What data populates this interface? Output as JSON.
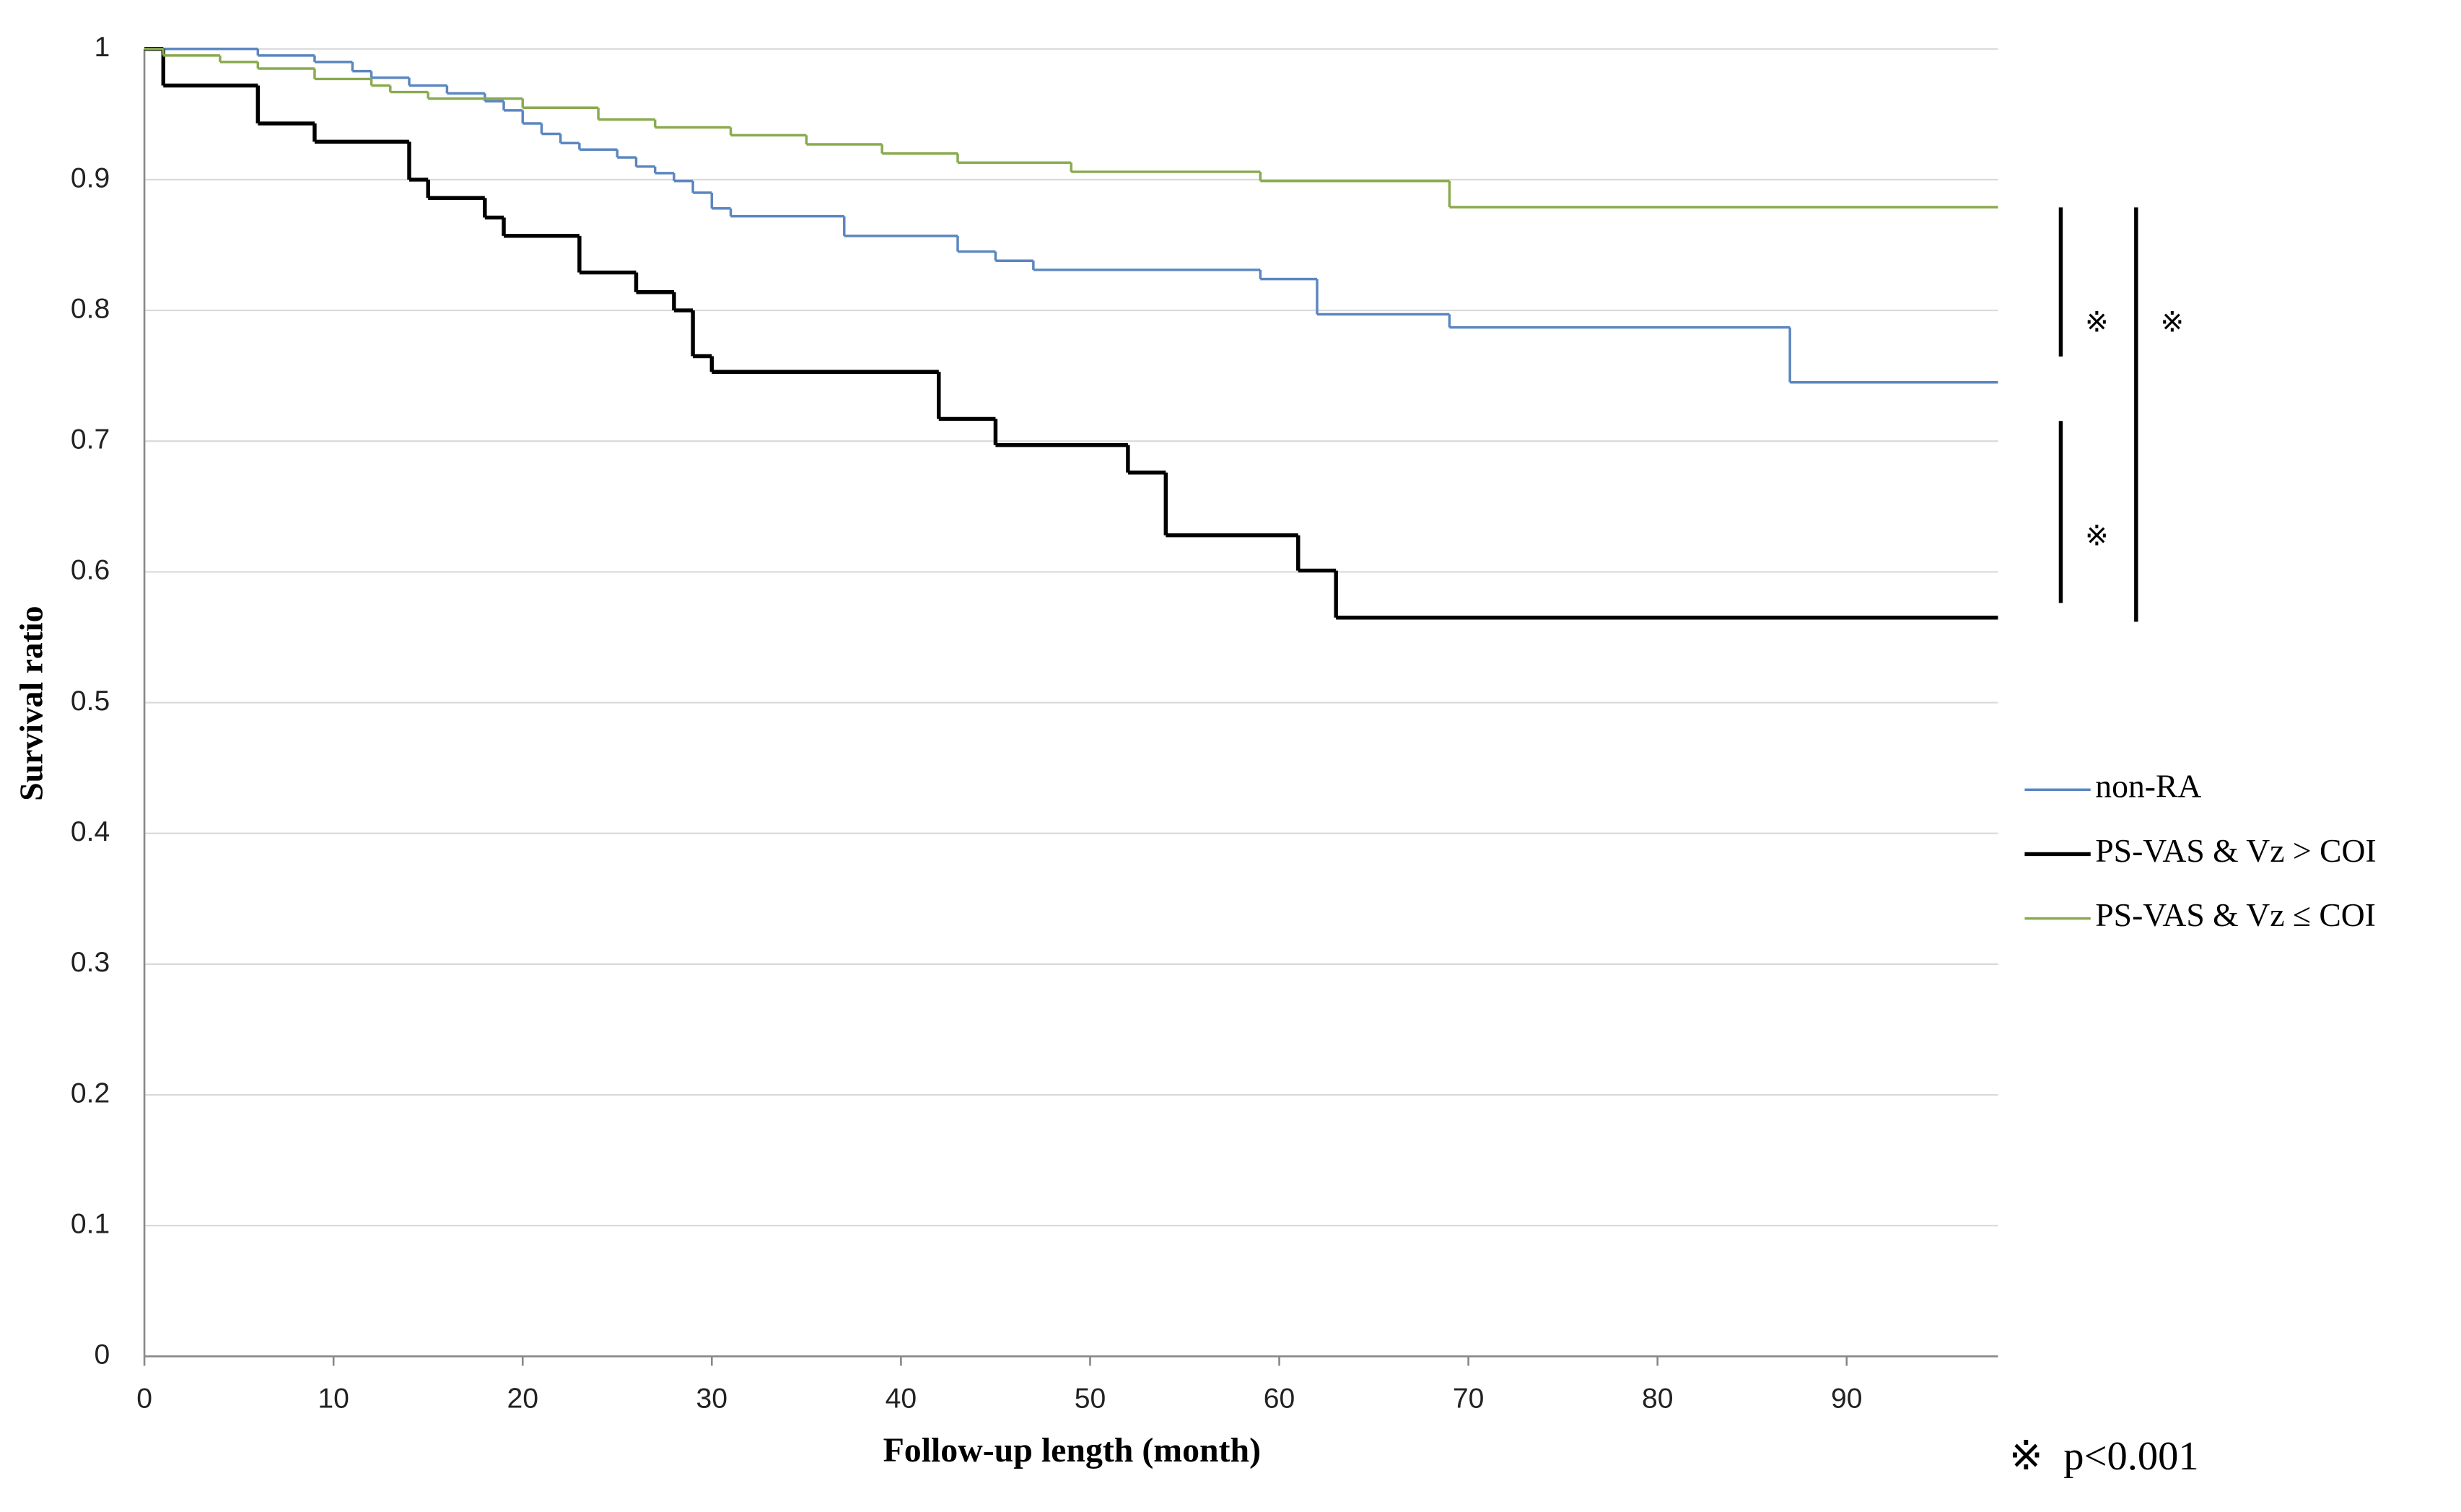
{
  "chart_data": {
    "type": "step",
    "xlabel": "Follow-up length (month)",
    "ylabel": "Survival ratio",
    "xlim": [
      0,
      98
    ],
    "xticks": [
      0,
      10,
      20,
      30,
      40,
      50,
      60,
      70,
      80,
      90
    ],
    "ylim": [
      0,
      1
    ],
    "yticks": [
      0,
      0.1,
      0.2,
      0.3,
      0.4,
      0.5,
      0.6,
      0.7,
      0.8,
      0.9,
      1
    ],
    "grid": true,
    "legend": "right",
    "series": [
      {
        "name": "non-RA",
        "color": "#5b86c0",
        "x": [
          0,
          6,
          9,
          11,
          12,
          14,
          16,
          18,
          19,
          20,
          21,
          22,
          23,
          25,
          26,
          27,
          28,
          29,
          30,
          31,
          37,
          43,
          45,
          47,
          59,
          62,
          69,
          87
        ],
        "values": [
          1,
          0.995,
          0.99,
          0.983,
          0.978,
          0.972,
          0.966,
          0.96,
          0.953,
          0.943,
          0.935,
          0.928,
          0.923,
          0.917,
          0.91,
          0.905,
          0.899,
          0.89,
          0.878,
          0.872,
          0.857,
          0.845,
          0.838,
          0.831,
          0.824,
          0.797,
          0.787,
          0.745
        ]
      },
      {
        "name": "PS-VAS & Vz > COI",
        "color": "#000000",
        "x": [
          0,
          1,
          6,
          9,
          14,
          15,
          18,
          19,
          23,
          26,
          28,
          29,
          30,
          42,
          45,
          52,
          54,
          61,
          63
        ],
        "values": [
          1,
          0.972,
          0.943,
          0.929,
          0.9,
          0.886,
          0.871,
          0.857,
          0.829,
          0.814,
          0.8,
          0.765,
          0.753,
          0.717,
          0.697,
          0.676,
          0.628,
          0.601,
          0.565
        ]
      },
      {
        "name": "PS-VAS & Vz ≤ COI",
        "color": "#8aaa4f",
        "x": [
          0,
          1,
          4,
          6,
          9,
          12,
          13,
          15,
          20,
          24,
          27,
          31,
          35,
          39,
          43,
          49,
          59,
          69
        ],
        "values": [
          1,
          0.995,
          0.99,
          0.985,
          0.977,
          0.972,
          0.967,
          0.962,
          0.955,
          0.946,
          0.94,
          0.934,
          0.927,
          0.92,
          0.913,
          0.906,
          0.899,
          0.879
        ]
      }
    ],
    "annotations": [
      "※",
      "※",
      "※",
      "※  p<0.001"
    ]
  }
}
